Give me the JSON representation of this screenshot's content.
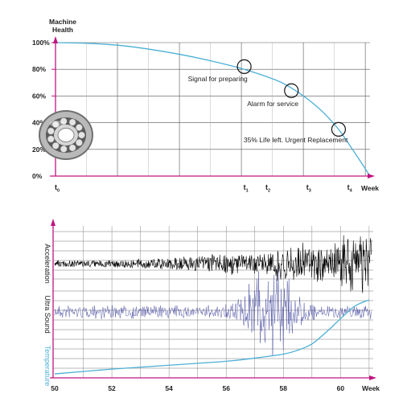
{
  "colors": {
    "axis": "#c0147f",
    "curve": "#4bb0d6",
    "grid": "#555555",
    "acceleration": "#000000",
    "ultrasound": "#3b3f9a",
    "temperature": "#4bb0d6",
    "marker": "#111111"
  },
  "chart_data": [
    {
      "type": "line",
      "ylabel": "Machine\nHealth",
      "ylabel_lines": [
        "Machine",
        "Health"
      ],
      "xlabel": "Week",
      "yticks": [
        "100%",
        "80%",
        "60%",
        "40%",
        "20%",
        "0%"
      ],
      "ytick_values": [
        100,
        80,
        60,
        40,
        20,
        0
      ],
      "xticks": [
        {
          "label": "t",
          "sub": "0"
        },
        {
          "label": "t",
          "sub": "1"
        },
        {
          "label": "t",
          "sub": "2"
        },
        {
          "label": "t",
          "sub": "3"
        },
        {
          "label": "t",
          "sub": "4"
        }
      ],
      "ylim": [
        0,
        100
      ],
      "grid": true,
      "curve": {
        "x": [
          0,
          0.1,
          0.2,
          0.3,
          0.4,
          0.5,
          0.6,
          0.7,
          0.75,
          0.8,
          0.85,
          0.9,
          0.95,
          1.0
        ],
        "y": [
          100,
          99.5,
          98,
          95,
          91,
          86,
          80,
          72,
          66,
          58,
          48,
          35,
          18,
          0
        ]
      },
      "markers": [
        {
          "x": 0.6,
          "y": 82,
          "label": "Signal for preparing"
        },
        {
          "x": 0.75,
          "y": 64,
          "label": "Alarm for service"
        },
        {
          "x": 0.9,
          "y": 35,
          "label": "35% Life left. Urgent Replacement"
        }
      ],
      "image": "ball-bearing"
    },
    {
      "type": "line",
      "xlabel": "Week",
      "xticks": [
        "50",
        "52",
        "54",
        "56",
        "58",
        "60"
      ],
      "xlim": [
        50,
        61.2
      ],
      "grid": true,
      "series": [
        {
          "name": "Acceleration",
          "kind": "vibration-growing"
        },
        {
          "name": "Ultra Sound",
          "kind": "vibration-burst"
        },
        {
          "name": "Temperature",
          "kind": "curve",
          "x": [
            50,
            52,
            54,
            56,
            57,
            58,
            58.5,
            59,
            59.5,
            60,
            60.5,
            61
          ],
          "y": [
            0.02,
            0.08,
            0.13,
            0.18,
            0.22,
            0.27,
            0.32,
            0.4,
            0.55,
            0.72,
            0.88,
            0.96
          ]
        }
      ]
    }
  ]
}
